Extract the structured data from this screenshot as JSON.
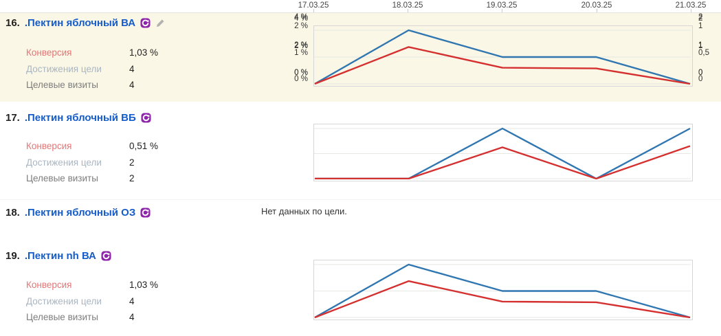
{
  "axis_dates": [
    "17.03.25",
    "18.03.25",
    "19.03.25",
    "20.03.25",
    "21.03.25"
  ],
  "metric_labels": {
    "conversion": "Конверсия",
    "goal_reaches": "Достижения цели",
    "goal_visits": "Целевые визиты"
  },
  "goals": [
    {
      "number": "16.",
      "title": ".Пектин яблочный ВА",
      "conversion": "1,03 %",
      "goal_reaches": "4",
      "goal_visits": "4"
    },
    {
      "number": "17.",
      "title": ".Пектин яблочный ВБ",
      "conversion": "0,51 %",
      "goal_reaches": "2",
      "goal_visits": "2"
    },
    {
      "number": "18.",
      "title": ".Пектин яблочный ОЗ",
      "no_data_text": "Нет данных по цели."
    },
    {
      "number": "19.",
      "title": ".Пектин nh ВА",
      "conversion": "1,03 %",
      "goal_reaches": "4",
      "goal_visits": "4"
    }
  ],
  "icons": {
    "goal_type": "purple circular-arrow badge",
    "edit": "gray pencil"
  },
  "colors": {
    "title_link": "#155cc8",
    "row_highlight": "#faf7e6",
    "line_blue": "#3076b0",
    "line_red": "#d53030",
    "icon_purple": "#8e24aa",
    "label_conversion": "#e27676",
    "label_reaches": "#a9b6c2",
    "label_visits": "#7d7d7d"
  },
  "chart_data": [
    {
      "type": "line",
      "x": [
        "17.03.25",
        "18.03.25",
        "19.03.25",
        "20.03.25",
        "21.03.25"
      ],
      "left_axis": {
        "label": "Конверсия",
        "ticks": [
          "0 %",
          "2 %",
          "4 %"
        ],
        "max": 4
      },
      "right_axis": {
        "label": "Достижения цели",
        "ticks": [
          "0",
          "1",
          "2"
        ],
        "max": 2
      },
      "series": [
        {
          "name": "Достижения цели",
          "axis": "right",
          "color": "#3076b0",
          "values": [
            0,
            2,
            1,
            1,
            0
          ]
        },
        {
          "name": "Конверсия",
          "axis": "left",
          "color": "#d53030",
          "values": [
            0,
            2.75,
            1.2,
            1.15,
            0
          ]
        }
      ],
      "grid": true,
      "legend": "none"
    },
    {
      "type": "line",
      "x": [
        "17.03.25",
        "18.03.25",
        "19.03.25",
        "20.03.25",
        "21.03.25"
      ],
      "left_axis": {
        "label": "Конверсия",
        "ticks": [
          "0 %",
          "1 %",
          "2 %"
        ],
        "max": 2
      },
      "right_axis": {
        "label": "Достижения цели",
        "ticks": [
          "0",
          "0,5",
          "1"
        ],
        "max": 1
      },
      "series": [
        {
          "name": "Достижения цели",
          "axis": "right",
          "color": "#3076b0",
          "values": [
            0,
            0,
            1,
            0,
            1
          ]
        },
        {
          "name": "Конверсия",
          "axis": "left",
          "color": "#d53030",
          "values": [
            0,
            0,
            1.25,
            0,
            1.3
          ]
        }
      ],
      "grid": true,
      "legend": "none"
    },
    {
      "type": "line",
      "x": [
        "17.03.25",
        "18.03.25",
        "19.03.25",
        "20.03.25",
        "21.03.25"
      ],
      "left_axis": {
        "label": "Конверсия",
        "ticks": [
          "0 %",
          "2 %",
          "4 %"
        ],
        "max": 4
      },
      "right_axis": {
        "label": "Достижения цели",
        "ticks": [
          "0",
          "1",
          "2"
        ],
        "max": 2
      },
      "series": [
        {
          "name": "Достижения цели",
          "axis": "right",
          "color": "#3076b0",
          "values": [
            0,
            2,
            1,
            1,
            0
          ]
        },
        {
          "name": "Конверсия",
          "axis": "left",
          "color": "#d53030",
          "values": [
            0,
            2.75,
            1.2,
            1.15,
            0
          ]
        }
      ],
      "grid": true,
      "legend": "none"
    }
  ]
}
